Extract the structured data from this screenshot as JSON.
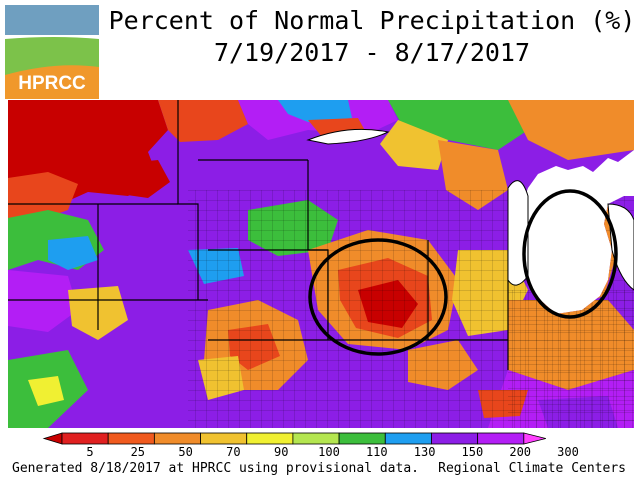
{
  "title": {
    "line1": "Percent of Normal Precipitation (%)",
    "line2": "7/19/2017 - 8/17/2017"
  },
  "logo": {
    "text": "HPRCC",
    "colors": {
      "sky": "#6f9fc0",
      "field": "#7cc24a",
      "band": "#f0982b"
    }
  },
  "legend": {
    "labels": [
      "5",
      "25",
      "50",
      "70",
      "90",
      "100",
      "110",
      "130",
      "150",
      "200",
      "300"
    ],
    "colors": [
      "#c80000",
      "#e02020",
      "#f05a1e",
      "#f08c2a",
      "#f0c230",
      "#f0f032",
      "#b4e650",
      "#3cbe3c",
      "#1e9ef0",
      "#8c1ee6",
      "#b31ef5",
      "#ff40ff"
    ]
  },
  "footer": {
    "left": "Generated 8/18/2017 at HPRCC using provisional data.",
    "right": "Regional Climate Centers"
  },
  "map": {
    "colors": {
      "very_dry": "#c80000",
      "dry": "#e8461c",
      "below": "#f08c2a",
      "slightly_below": "#f0c230",
      "normal": "#6cc84a",
      "above": "#1e9ef0",
      "wet": "#8c1ee6",
      "very_wet": "#b31ef5",
      "water": "#ffffff"
    },
    "annotations": [
      "ellipse-iowa",
      "ellipse-michigan"
    ]
  }
}
